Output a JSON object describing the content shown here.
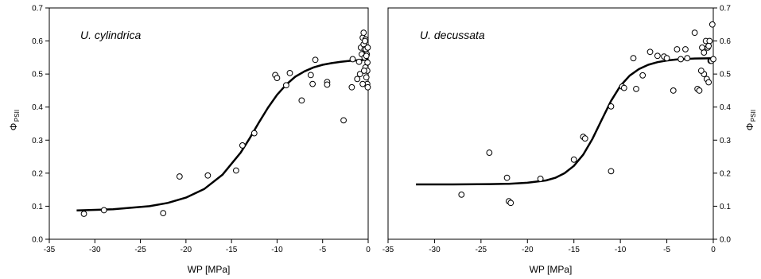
{
  "chart_data": [
    {
      "type": "scatter",
      "title": "U. cylindrica",
      "xlabel": "WP [MPa]",
      "ylabel": "Φ",
      "ylabel_sub": "PSII",
      "ylabel_side": "left",
      "xlim": [
        -35,
        0
      ],
      "ylim": [
        0.0,
        0.7
      ],
      "xticks": [
        "-35",
        "-30",
        "-25",
        "-20",
        "-15",
        "-10",
        "-5",
        "0"
      ],
      "xtick_values": [
        -35,
        -30,
        -25,
        -20,
        -15,
        -10,
        -5,
        0
      ],
      "yticks": [
        "0.0",
        "0.1",
        "0.2",
        "0.3",
        "0.4",
        "0.5",
        "0.6",
        "0.7"
      ],
      "ytick_values": [
        0,
        0.1,
        0.2,
        0.3,
        0.4,
        0.5,
        0.6,
        0.7
      ],
      "grid": false,
      "points": [
        [
          -31.2,
          0.077
        ],
        [
          -29.0,
          0.088
        ],
        [
          -22.5,
          0.079
        ],
        [
          -20.7,
          0.19
        ],
        [
          -17.6,
          0.193
        ],
        [
          -14.5,
          0.208
        ],
        [
          -13.8,
          0.284
        ],
        [
          -12.5,
          0.321
        ],
        [
          -10.2,
          0.497
        ],
        [
          -10.0,
          0.488
        ],
        [
          -9.0,
          0.466
        ],
        [
          -8.6,
          0.503
        ],
        [
          -7.3,
          0.42
        ],
        [
          -6.3,
          0.497
        ],
        [
          -6.1,
          0.47
        ],
        [
          -5.8,
          0.543
        ],
        [
          -4.5,
          0.476
        ],
        [
          -4.5,
          0.468
        ],
        [
          -2.7,
          0.36
        ],
        [
          -1.7,
          0.545
        ],
        [
          -1.8,
          0.46
        ],
        [
          -1.2,
          0.485
        ],
        [
          -1.0,
          0.537
        ],
        [
          -0.8,
          0.58
        ],
        [
          -0.7,
          0.56
        ],
        [
          -0.6,
          0.61
        ],
        [
          -0.5,
          0.625
        ],
        [
          -0.5,
          0.59
        ],
        [
          -0.4,
          0.575
        ],
        [
          -0.4,
          0.55
        ],
        [
          -0.3,
          0.52
        ],
        [
          -0.3,
          0.605
        ],
        [
          -0.25,
          0.575
        ],
        [
          -0.2,
          0.49
        ],
        [
          -0.15,
          0.56
        ],
        [
          -0.1,
          0.47
        ],
        [
          -0.1,
          0.51
        ],
        [
          -0.08,
          0.535
        ],
        [
          -0.05,
          0.58
        ],
        [
          -0.05,
          0.46
        ],
        [
          -0.9,
          0.5
        ],
        [
          -0.6,
          0.47
        ],
        [
          -0.35,
          0.6
        ],
        [
          -0.2,
          0.555
        ],
        [
          -0.45,
          0.51
        ]
      ],
      "fit_curve": {
        "type": "sigmoid",
        "x": [
          -32,
          -28,
          -24,
          -22,
          -20,
          -18,
          -16,
          -14,
          -13,
          -12,
          -11,
          -10,
          -9,
          -8,
          -7,
          -6,
          -5,
          -4,
          -3,
          -2,
          -1,
          0
        ],
        "y": [
          0.087,
          0.091,
          0.1,
          0.11,
          0.126,
          0.152,
          0.195,
          0.262,
          0.306,
          0.353,
          0.398,
          0.437,
          0.468,
          0.492,
          0.508,
          0.52,
          0.528,
          0.533,
          0.537,
          0.54,
          0.542,
          0.544
        ]
      },
      "marker": "open-circle"
    },
    {
      "type": "scatter",
      "title": "U. decussata",
      "xlabel": "WP [MPa]",
      "ylabel": "Φ",
      "ylabel_sub": "PSII",
      "ylabel_side": "right",
      "xlim": [
        -35,
        0
      ],
      "ylim": [
        0.0,
        0.7
      ],
      "xticks": [
        "-35",
        "-30",
        "-25",
        "-20",
        "-15",
        "-10",
        "-5",
        "0"
      ],
      "xtick_values": [
        -35,
        -30,
        -25,
        -20,
        -15,
        -10,
        -5,
        0
      ],
      "yticks": [
        "0.0",
        "0.1",
        "0.2",
        "0.3",
        "0.4",
        "0.5",
        "0.6",
        "0.7"
      ],
      "ytick_values": [
        0,
        0.1,
        0.2,
        0.3,
        0.4,
        0.5,
        0.6,
        0.7
      ],
      "grid": false,
      "points": [
        [
          -27.1,
          0.135
        ],
        [
          -24.1,
          0.262
        ],
        [
          -22.2,
          0.186
        ],
        [
          -22.0,
          0.115
        ],
        [
          -21.8,
          0.11
        ],
        [
          -18.6,
          0.183
        ],
        [
          -15.0,
          0.241
        ],
        [
          -14.0,
          0.31
        ],
        [
          -13.8,
          0.305
        ],
        [
          -11.0,
          0.206
        ],
        [
          -11.0,
          0.402
        ],
        [
          -9.8,
          0.462
        ],
        [
          -9.6,
          0.458
        ],
        [
          -8.6,
          0.548
        ],
        [
          -8.3,
          0.455
        ],
        [
          -7.6,
          0.496
        ],
        [
          -6.8,
          0.567
        ],
        [
          -6.0,
          0.555
        ],
        [
          -5.3,
          0.553
        ],
        [
          -5.0,
          0.548
        ],
        [
          -4.3,
          0.45
        ],
        [
          -3.9,
          0.575
        ],
        [
          -3.5,
          0.545
        ],
        [
          -3.0,
          0.575
        ],
        [
          -2.8,
          0.548
        ],
        [
          -2.0,
          0.625
        ],
        [
          -1.7,
          0.455
        ],
        [
          -1.5,
          0.45
        ],
        [
          -1.2,
          0.58
        ],
        [
          -1.0,
          0.5
        ],
        [
          -1.0,
          0.565
        ],
        [
          -0.8,
          0.6
        ],
        [
          -0.7,
          0.485
        ],
        [
          -0.6,
          0.58
        ],
        [
          -0.5,
          0.475
        ],
        [
          -0.4,
          0.6
        ],
        [
          -0.3,
          0.54
        ],
        [
          -0.2,
          0.54
        ],
        [
          -0.1,
          0.65
        ],
        [
          0.0,
          0.545
        ],
        [
          -0.5,
          0.585
        ],
        [
          -1.3,
          0.51
        ]
      ],
      "fit_curve": {
        "type": "sigmoid",
        "x": [
          -32,
          -28,
          -24,
          -22,
          -20,
          -18,
          -17,
          -16,
          -15,
          -14,
          -13,
          -12,
          -11,
          -10,
          -9,
          -8,
          -7,
          -6,
          -5,
          -4,
          -2,
          0
        ],
        "y": [
          0.166,
          0.166,
          0.167,
          0.168,
          0.171,
          0.178,
          0.186,
          0.2,
          0.222,
          0.256,
          0.304,
          0.362,
          0.419,
          0.464,
          0.495,
          0.515,
          0.528,
          0.536,
          0.541,
          0.544,
          0.547,
          0.548
        ]
      },
      "marker": "open-circle"
    }
  ]
}
